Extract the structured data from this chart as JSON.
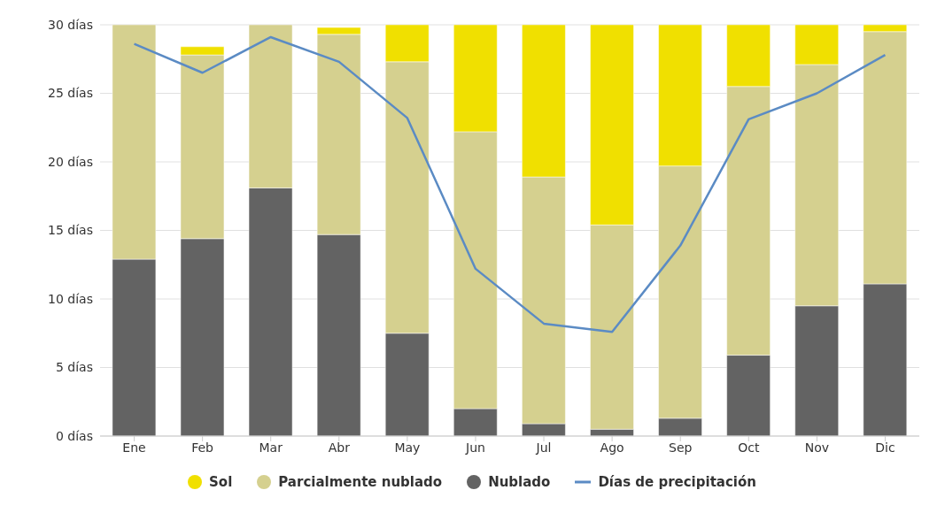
{
  "chart_data": {
    "type": "bar",
    "stacked": true,
    "categories": [
      "Ene",
      "Feb",
      "Mar",
      "Abr",
      "May",
      "Jun",
      "Jul",
      "Ago",
      "Sep",
      "Oct",
      "Nov",
      "Dic"
    ],
    "series": [
      {
        "name": "Nublado",
        "color": "#636363",
        "values": [
          12.9,
          14.4,
          18.1,
          14.7,
          7.5,
          2.0,
          0.9,
          0.5,
          1.3,
          5.9,
          9.5,
          11.1
        ]
      },
      {
        "name": "Parcialmente nublado",
        "color": "#d5d08f",
        "values": [
          17.1,
          13.4,
          11.9,
          14.6,
          19.8,
          20.2,
          18.0,
          14.9,
          18.4,
          19.6,
          17.6,
          18.4
        ]
      },
      {
        "name": "Sol",
        "color": "#f0e000",
        "values": [
          0,
          0.6,
          0,
          0.5,
          2.7,
          7.8,
          11.1,
          14.6,
          10.3,
          4.5,
          2.9,
          0.5
        ]
      },
      {
        "name": "Días de precipitación",
        "type": "line",
        "color": "#5b8bc4",
        "values": [
          28.6,
          26.5,
          29.1,
          27.3,
          23.2,
          12.2,
          8.2,
          7.6,
          13.9,
          23.1,
          25.0,
          27.8
        ]
      }
    ],
    "ylim": [
      0,
      30
    ],
    "yticks": [
      {
        "value": 0,
        "label": "0 días"
      },
      {
        "value": 5,
        "label": "5 días"
      },
      {
        "value": 10,
        "label": "10 días"
      },
      {
        "value": 15,
        "label": "15 días"
      },
      {
        "value": 20,
        "label": "20 días"
      },
      {
        "value": 25,
        "label": "25 días"
      },
      {
        "value": 30,
        "label": "30 días"
      }
    ],
    "grid": "y",
    "legend": "bottom",
    "marker": "none",
    "line_style": "solid"
  }
}
